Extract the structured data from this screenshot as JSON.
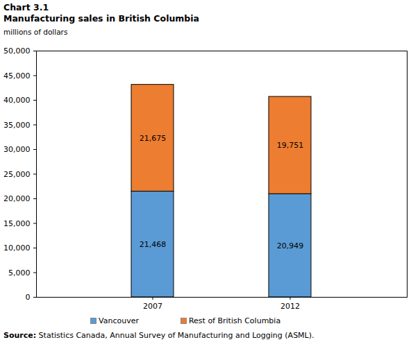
{
  "chart_data": {
    "type": "bar",
    "title": "Chart 3.1",
    "subtitle": "Manufacturing  sales in British Columbia",
    "y_label": "millions of dollars",
    "source_label": "Source:",
    "source": "Statistics Canada, Annual Survey of Manufacturing and Logging (ASML).",
    "categories": [
      "2007",
      "2012"
    ],
    "series": [
      {
        "name": "Vancouver",
        "color": "#5b9bd5",
        "values": [
          21468,
          20949
        ],
        "value_labels": [
          "21,468",
          "20,949"
        ]
      },
      {
        "name": "Rest of British Columbia",
        "color": "#ed7d31",
        "values": [
          21675,
          19751
        ],
        "value_labels": [
          "21,675",
          "19,751"
        ]
      }
    ],
    "ylim": [
      0,
      50000
    ],
    "yticks": [
      0,
      {
        "value": 5000,
        "label": "5,000"
      },
      {
        "value": 10000,
        "label": "10,000"
      },
      {
        "value": 15000,
        "label": "15,000"
      },
      {
        "value": 20000,
        "label": "20,000"
      },
      {
        "value": 25000,
        "label": "25,000"
      },
      {
        "value": 30000,
        "label": "30,000"
      },
      {
        "value": 35000,
        "label": "35,000"
      },
      {
        "value": 40000,
        "label": "40,000"
      },
      {
        "value": 45000,
        "label": "45,000"
      },
      {
        "value": 50000,
        "label": "50,000"
      }
    ],
    "stacked": true,
    "data_labels": true,
    "legend": "bottom",
    "grid": false
  }
}
